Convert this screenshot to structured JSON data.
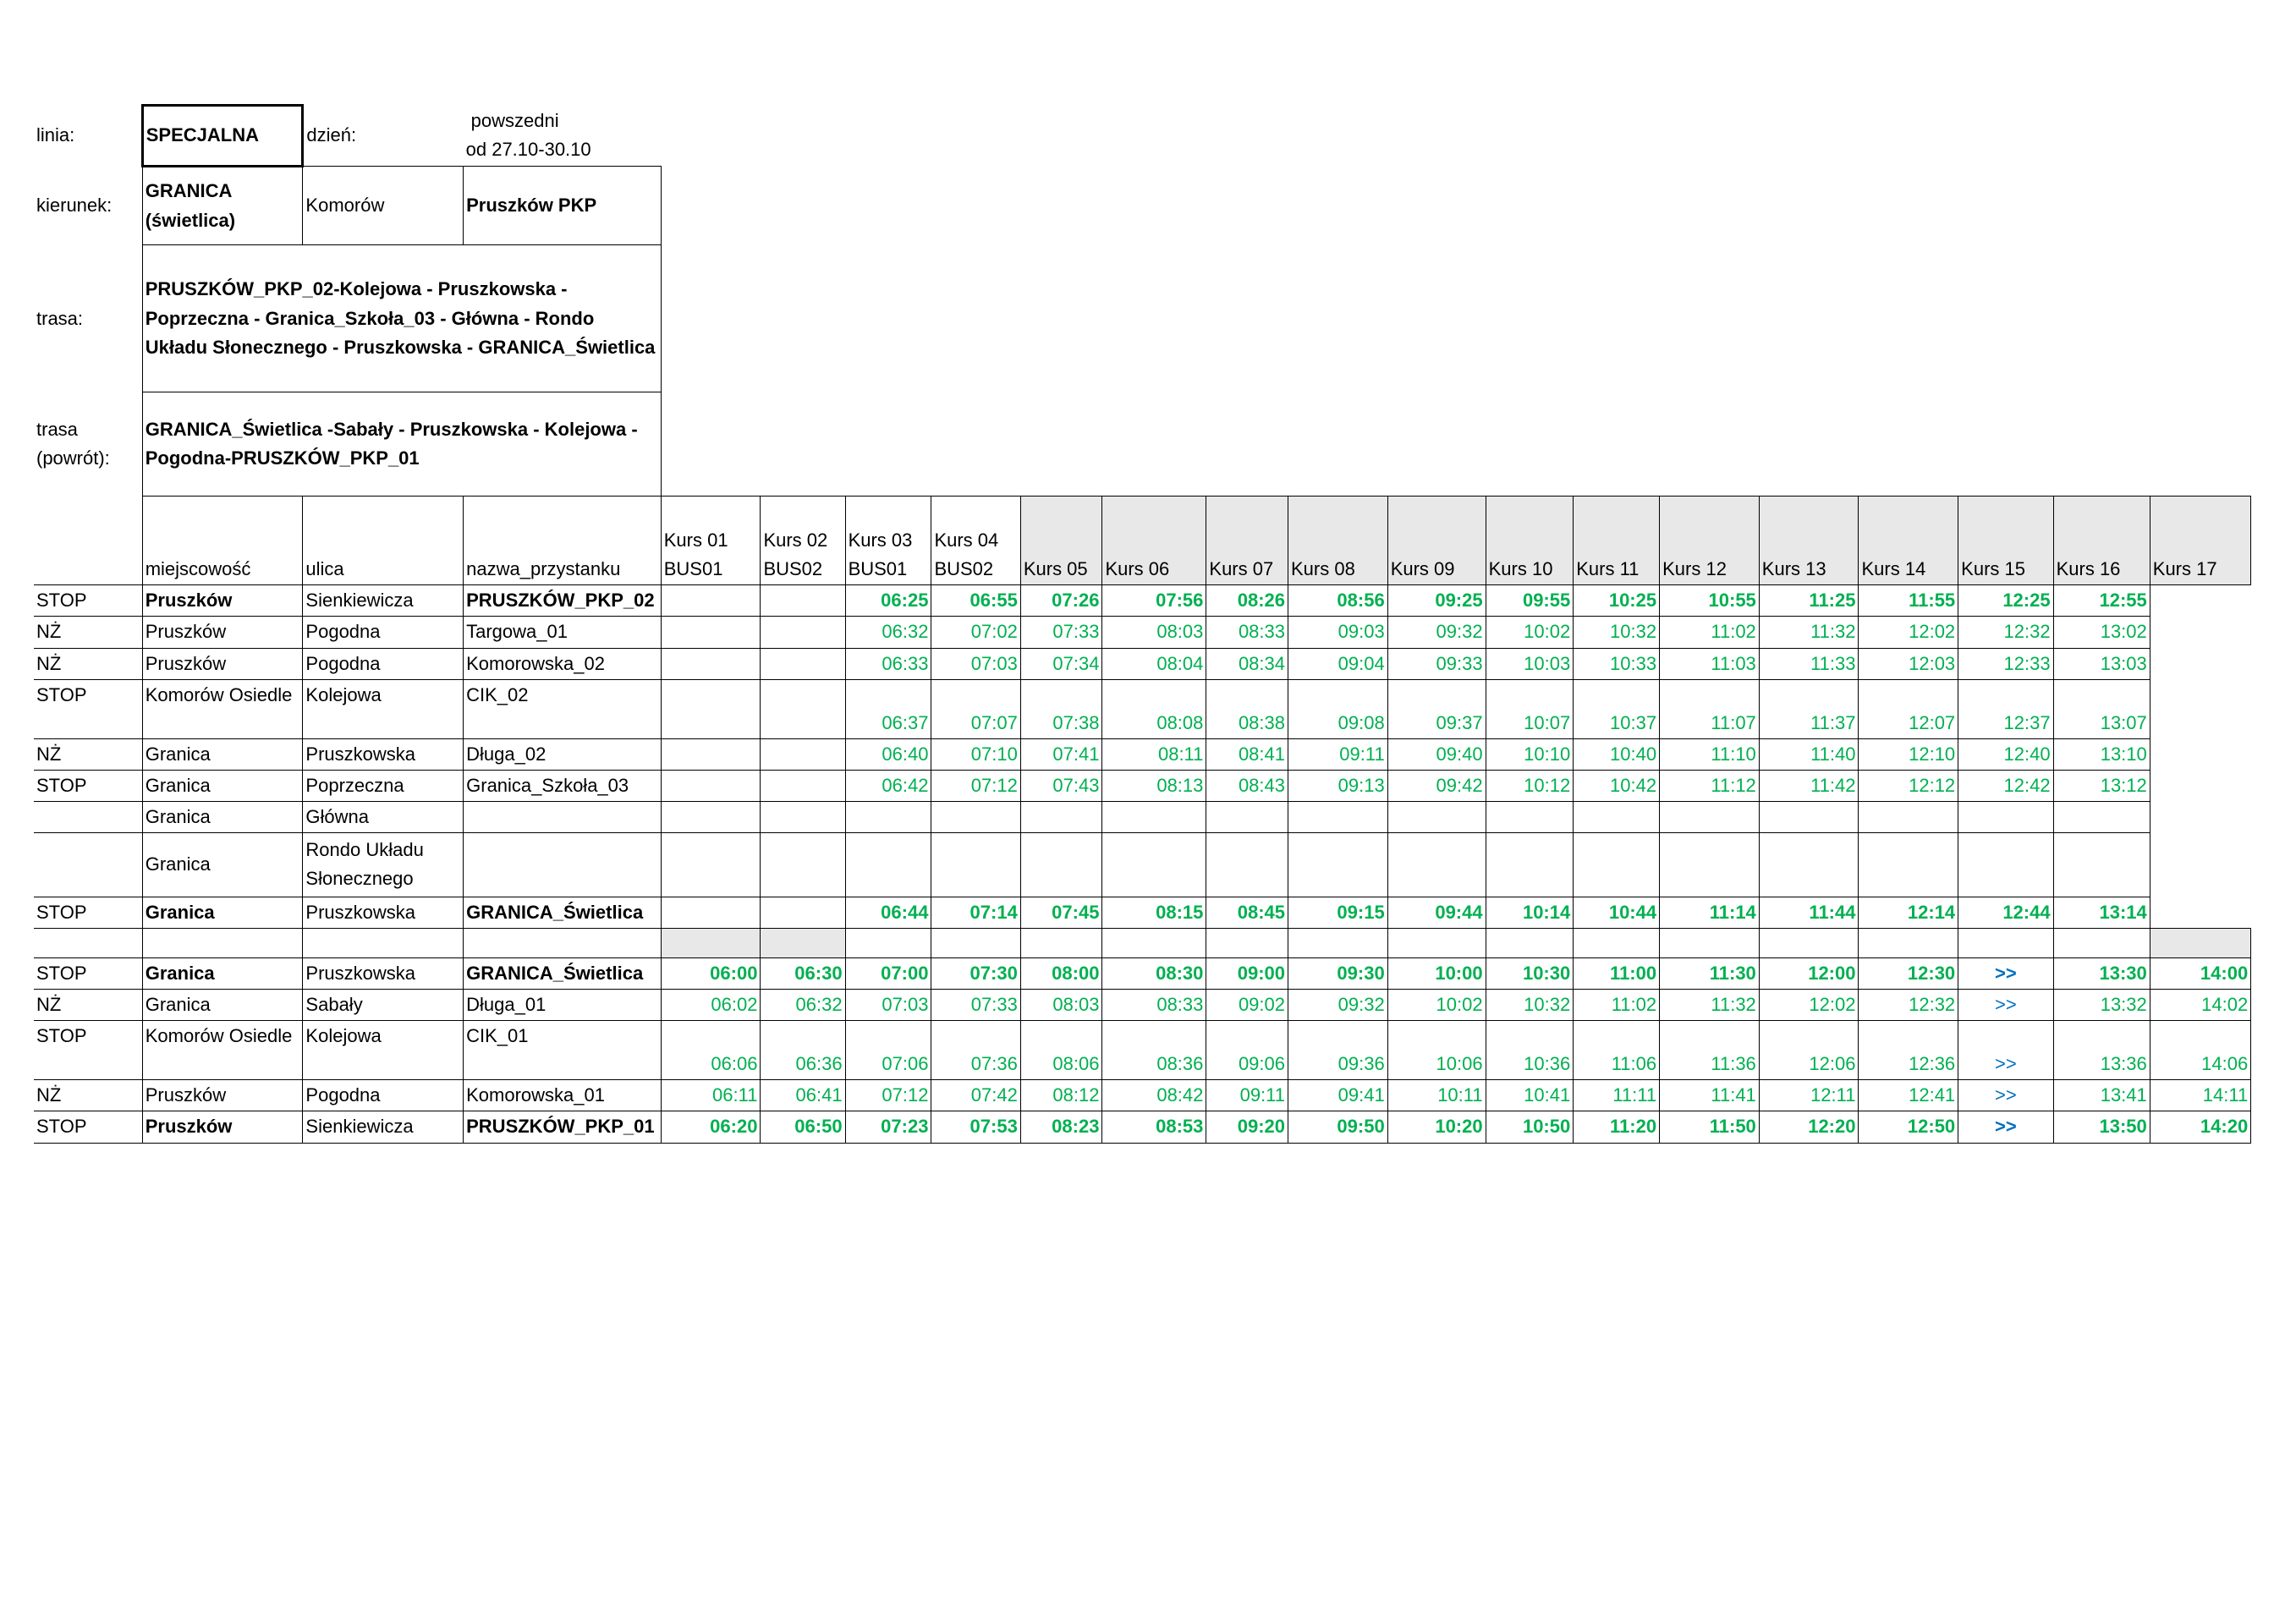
{
  "header": {
    "line_label": "linia:",
    "line": "SPECJALNA",
    "day_label": "dzień:",
    "day": "powszedni",
    "day_range": "od 27.10-30.10",
    "direction_label": "kierunek:",
    "direction": [
      "GRANICA (świetlica)",
      "Komorów",
      "Pruszków PKP"
    ],
    "route_label": "trasa:",
    "route": "PRUSZKÓW_PKP_02-Kolejowa - Pruszkowska - Poprzeczna - Granica_Szkoła_03 - Główna - Rondo Układu Słonecznego - Pruszkowska - GRANICA_Świetlica",
    "return_label": "trasa (powrót):",
    "return_route": "GRANICA_Świetlica -Sabały - Pruszkowska - Kolejowa - Pogodna-PRUSZKÓW_PKP_01"
  },
  "table": {
    "columns": [
      "miejscowość",
      "ulica",
      "nazwa_przystanku"
    ],
    "courses": [
      {
        "name": "Kurs 01",
        "bus": "BUS01"
      },
      {
        "name": "Kurs 02",
        "bus": "BUS02"
      },
      {
        "name": "Kurs 03",
        "bus": "BUS01"
      },
      {
        "name": "Kurs 04",
        "bus": "BUS02"
      },
      {
        "name": "Kurs 05"
      },
      {
        "name": "Kurs 06"
      },
      {
        "name": "Kurs 07"
      },
      {
        "name": "Kurs 08"
      },
      {
        "name": "Kurs 09"
      },
      {
        "name": "Kurs 10"
      },
      {
        "name": "Kurs 11"
      },
      {
        "name": "Kurs 12"
      },
      {
        "name": "Kurs 13"
      },
      {
        "name": "Kurs 14"
      },
      {
        "name": "Kurs 15"
      },
      {
        "name": "Kurs 16"
      },
      {
        "name": "Kurs 17"
      }
    ],
    "outbound": [
      {
        "type": "STOP",
        "town": "Pruszków",
        "street": "Sienkiewicza",
        "stop": "PRUSZKÓW_PKP_02",
        "bold": true,
        "times": [
          null,
          null,
          "06:25",
          "06:55",
          "07:26",
          "07:56",
          "08:26",
          "08:56",
          "09:25",
          "09:55",
          "10:25",
          "10:55",
          "11:25",
          "11:55",
          "12:25",
          "12:55",
          null
        ]
      },
      {
        "type": "NŻ",
        "town": "Pruszków",
        "street": "Pogodna",
        "stop": "Targowa_01",
        "times": [
          null,
          null,
          "06:32",
          "07:02",
          "07:33",
          "08:03",
          "08:33",
          "09:03",
          "09:32",
          "10:02",
          "10:32",
          "11:02",
          "11:32",
          "12:02",
          "12:32",
          "13:02",
          null
        ]
      },
      {
        "type": "NŻ",
        "town": "Pruszków",
        "street": "Pogodna",
        "stop": "Komorowska_02",
        "times": [
          null,
          null,
          "06:33",
          "07:03",
          "07:34",
          "08:04",
          "08:34",
          "09:04",
          "09:33",
          "10:03",
          "10:33",
          "11:03",
          "11:33",
          "12:03",
          "12:33",
          "13:03",
          null
        ]
      },
      {
        "type": "STOP",
        "town": "Komorów Osiedle",
        "street": "Kolejowa",
        "stop": "CIK_02",
        "times": [
          null,
          null,
          "06:37",
          "07:07",
          "07:38",
          "08:08",
          "08:38",
          "09:08",
          "09:37",
          "10:07",
          "10:37",
          "11:07",
          "11:37",
          "12:07",
          "12:37",
          "13:07",
          null
        ]
      },
      {
        "type": "NŻ",
        "town": "Granica",
        "street": "Pruszkowska",
        "stop": "Długa_02",
        "times": [
          null,
          null,
          "06:40",
          "07:10",
          "07:41",
          "08:11",
          "08:41",
          "09:11",
          "09:40",
          "10:10",
          "10:40",
          "11:10",
          "11:40",
          "12:10",
          "12:40",
          "13:10",
          null
        ]
      },
      {
        "type": "STOP",
        "town": "Granica",
        "street": "Poprzeczna",
        "stop": "Granica_Szkoła_03",
        "times": [
          null,
          null,
          "06:42",
          "07:12",
          "07:43",
          "08:13",
          "08:43",
          "09:13",
          "09:42",
          "10:12",
          "10:42",
          "11:12",
          "11:42",
          "12:12",
          "12:42",
          "13:12",
          null
        ]
      },
      {
        "town": "Granica",
        "street": "Główna"
      },
      {
        "town": "Granica",
        "street": "Rondo Układu Słonecznego"
      },
      {
        "type": "STOP",
        "town": "Granica",
        "street": "Pruszkowska",
        "stop": "GRANICA_Świetlica",
        "bold": true,
        "times": [
          null,
          null,
          "06:44",
          "07:14",
          "07:45",
          "08:15",
          "08:45",
          "09:15",
          "09:44",
          "10:14",
          "10:44",
          "11:14",
          "11:44",
          "12:14",
          "12:44",
          "13:14",
          null
        ]
      }
    ],
    "inbound": [
      {
        "type": "STOP",
        "town": "Granica",
        "street": "Pruszkowska",
        "stop": "GRANICA_Świetlica",
        "bold": true,
        "times": [
          "06:00",
          "06:30",
          "07:00",
          "07:30",
          "08:00",
          "08:30",
          "09:00",
          "09:30",
          "10:00",
          "10:30",
          "11:00",
          "11:30",
          "12:00",
          "12:30",
          ">>",
          "13:30",
          "14:00"
        ]
      },
      {
        "type": "NŻ",
        "town": "Granica",
        "street": "Sabały",
        "stop": "Długa_01",
        "times": [
          "06:02",
          "06:32",
          "07:03",
          "07:33",
          "08:03",
          "08:33",
          "09:02",
          "09:32",
          "10:02",
          "10:32",
          "11:02",
          "11:32",
          "12:02",
          "12:32",
          ">>",
          "13:32",
          "14:02"
        ]
      },
      {
        "type": "STOP",
        "town": "Komorów Osiedle",
        "street": "Kolejowa",
        "stop": "CIK_01",
        "times": [
          "06:06",
          "06:36",
          "07:06",
          "07:36",
          "08:06",
          "08:36",
          "09:06",
          "09:36",
          "10:06",
          "10:36",
          "11:06",
          "11:36",
          "12:06",
          "12:36",
          ">>",
          "13:36",
          "14:06"
        ]
      },
      {
        "type": "NŻ",
        "town": "Pruszków",
        "street": "Pogodna",
        "stop": "Komorowska_01",
        "times": [
          "06:11",
          "06:41",
          "07:12",
          "07:42",
          "08:12",
          "08:42",
          "09:11",
          "09:41",
          "10:11",
          "10:41",
          "11:11",
          "11:41",
          "12:11",
          "12:41",
          ">>",
          "13:41",
          "14:11"
        ]
      },
      {
        "type": "STOP",
        "town": "Pruszków",
        "street": "Sienkiewicza",
        "stop": "PRUSZKÓW_PKP_01",
        "bold": true,
        "times": [
          "06:20",
          "06:50",
          "07:23",
          "07:53",
          "08:23",
          "08:53",
          "09:20",
          "09:50",
          "10:20",
          "10:50",
          "11:20",
          "11:50",
          "12:20",
          "12:50",
          ">>",
          "13:50",
          "14:20"
        ]
      }
    ]
  }
}
